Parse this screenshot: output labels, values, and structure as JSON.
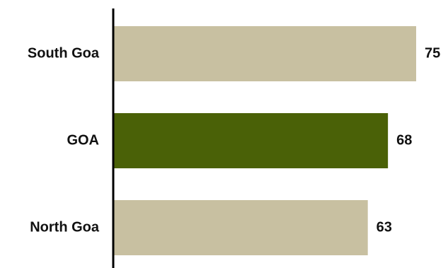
{
  "chart_data": {
    "type": "bar",
    "orientation": "horizontal",
    "title": "",
    "xlabel": "",
    "ylabel": "",
    "categories": [
      "South Goa",
      "GOA",
      "North Goa"
    ],
    "values": [
      75,
      68,
      63
    ],
    "value_labels": [
      "75",
      "68",
      "63"
    ],
    "colors": [
      "#c8c0a1",
      "#4a6107",
      "#c8c0a1"
    ],
    "grid": false,
    "legend": "none"
  }
}
